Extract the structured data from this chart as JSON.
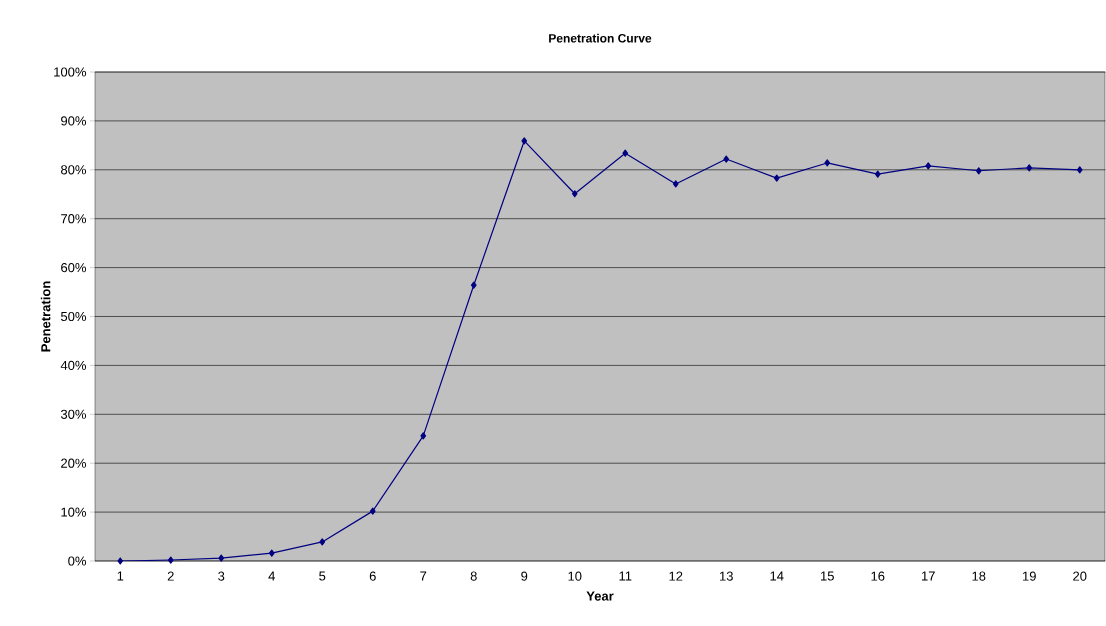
{
  "chart_data": {
    "type": "line",
    "title": "Penetration Curve",
    "xlabel": "Year",
    "ylabel": "Penetration",
    "categories": [
      "1",
      "2",
      "3",
      "4",
      "5",
      "6",
      "7",
      "8",
      "9",
      "10",
      "11",
      "12",
      "13",
      "14",
      "15",
      "16",
      "17",
      "18",
      "19",
      "20"
    ],
    "series": [
      {
        "color": "#000080",
        "values": [
          0,
          0.2,
          0.6,
          1.6,
          3.9,
          10.2,
          25.6,
          56.4,
          85.9,
          75.1,
          83.4,
          77.1,
          82.2,
          78.3,
          81.4,
          79.1,
          80.8,
          79.8,
          80.4,
          80.0
        ]
      }
    ],
    "ylim": [
      0,
      100
    ],
    "yticks": [
      {
        "value": 0,
        "label": "0%"
      },
      {
        "value": 10,
        "label": "10%"
      },
      {
        "value": 20,
        "label": "20%"
      },
      {
        "value": 30,
        "label": "30%"
      },
      {
        "value": 40,
        "label": "40%"
      },
      {
        "value": 50,
        "label": "50%"
      },
      {
        "value": 60,
        "label": "60%"
      },
      {
        "value": 70,
        "label": "70%"
      },
      {
        "value": 80,
        "label": "80%"
      },
      {
        "value": 90,
        "label": "90%"
      },
      {
        "value": 100,
        "label": "100%"
      }
    ],
    "grid": "y",
    "marker": "diamond",
    "line_style": "solid"
  }
}
